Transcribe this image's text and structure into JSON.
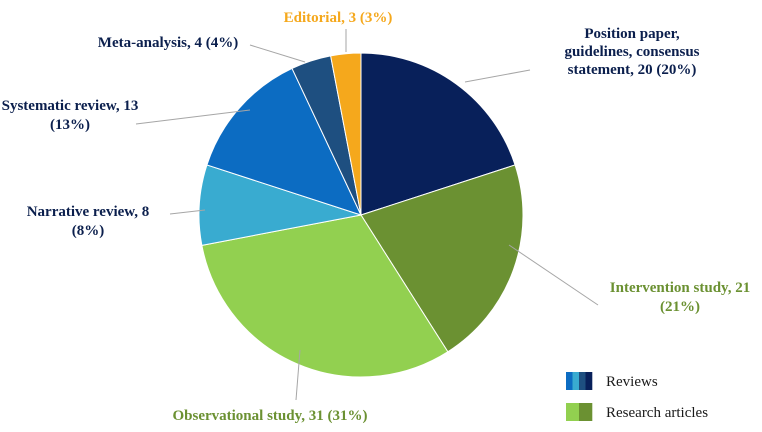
{
  "chart_data": {
    "type": "pie",
    "start_angle_deg": 0,
    "direction": "clockwise",
    "slices": [
      {
        "label_lines": [
          "Position paper,",
          "guidelines, consensus",
          "statement, 20 (20%)"
        ],
        "value": 20,
        "percent": 20,
        "color": "#08205a",
        "label_color": "#0b1f4d"
      },
      {
        "label_lines": [
          "Intervention study, 21",
          "(21%)"
        ],
        "value": 21,
        "percent": 21,
        "color": "#6b9132",
        "label_color": "#6b9132"
      },
      {
        "label_lines": [
          "Observational study, 31 (31%)"
        ],
        "value": 31,
        "percent": 31,
        "color": "#92d050",
        "label_color": "#6b9132"
      },
      {
        "label_lines": [
          "Narrative review, 8",
          "(8%)"
        ],
        "value": 8,
        "percent": 8,
        "color": "#39abd0",
        "label_color": "#0b1f4d"
      },
      {
        "label_lines": [
          "Systematic review, 13",
          "(13%)"
        ],
        "value": 13,
        "percent": 13,
        "color": "#0c6cc2",
        "label_color": "#0b1f4d"
      },
      {
        "label_lines": [
          "Meta-analysis, 4 (4%)"
        ],
        "value": 4,
        "percent": 4,
        "color": "#1e4f80",
        "label_color": "#0b1f4d"
      },
      {
        "label_lines": [
          "Editorial, 3 (3%)"
        ],
        "value": 3,
        "percent": 3,
        "color": "#f5a81c",
        "label_color": "#f5a81c"
      }
    ],
    "legend": {
      "placement": "bottom-right",
      "entries": [
        {
          "label": "Reviews",
          "swatch_colors": [
            "#0c6cc2",
            "#39abd0",
            "#1e4f80",
            "#08205a"
          ]
        },
        {
          "label": "Research articles",
          "swatch_colors": [
            "#92d050",
            "#6b9132"
          ]
        }
      ]
    }
  }
}
